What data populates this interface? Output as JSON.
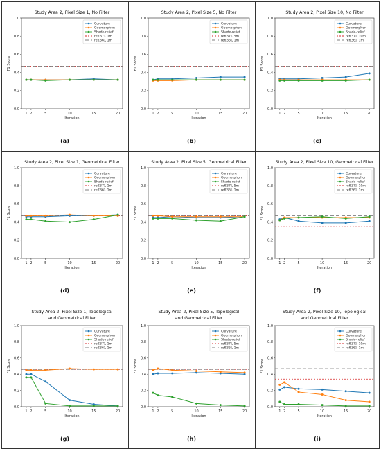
{
  "colors": {
    "curvature": "#1f77b4",
    "geomorphon": "#ff7f0e",
    "shade_relief": "#2ca02c",
    "ref37": "#d62728",
    "ref36": "#7f7f7f",
    "grid_border": "#333333"
  },
  "chart_data": [
    {
      "type": "line",
      "panel_label": "(a)",
      "title": [
        "Study Area 2, Pixel Size 1, No Filter"
      ],
      "xlabel": "Iteration",
      "ylabel": "F1 Score",
      "x": [
        1,
        2,
        5,
        10,
        15,
        20
      ],
      "xticks": [
        "1",
        "2",
        "5",
        "10",
        "15",
        "20"
      ],
      "ylim": [
        0,
        1.0
      ],
      "yticks": [
        "0.0",
        "0.2",
        "0.4",
        "0.6",
        "0.8",
        "1.0"
      ],
      "series": [
        {
          "name": "Curvature",
          "key": "curvature",
          "values": [
            0.32,
            0.32,
            0.32,
            0.32,
            0.33,
            0.32
          ]
        },
        {
          "name": "Geomorphon",
          "key": "geomorphon",
          "values": [
            0.32,
            0.32,
            0.32,
            0.32,
            0.32,
            0.32
          ]
        },
        {
          "name": "Shade-relief",
          "key": "shade_relief",
          "values": [
            0.32,
            0.32,
            0.31,
            0.32,
            0.32,
            0.32
          ]
        }
      ],
      "references": [
        {
          "name": "ref[37], 1m",
          "key": "ref37",
          "value": 0.47,
          "dash": "2,2"
        },
        {
          "name": "ref[36], 1m",
          "key": "ref36",
          "value": 0.47,
          "dash": "5,3"
        }
      ],
      "legend": "top-right"
    },
    {
      "type": "line",
      "panel_label": "(b)",
      "title": [
        "Study Area 2, Pixel Size 5, No Filter"
      ],
      "xlabel": "Iteration",
      "ylabel": "F1 Score",
      "x": [
        1,
        2,
        5,
        10,
        15,
        20
      ],
      "xticks": [
        "1",
        "2",
        "5",
        "10",
        "15",
        "20"
      ],
      "ylim": [
        0,
        1.0
      ],
      "yticks": [
        "0.0",
        "0.2",
        "0.4",
        "0.6",
        "0.8",
        "1.0"
      ],
      "series": [
        {
          "name": "Curvature",
          "key": "curvature",
          "values": [
            0.32,
            0.33,
            0.33,
            0.34,
            0.35,
            0.35
          ]
        },
        {
          "name": "Geomorphon",
          "key": "geomorphon",
          "values": [
            0.31,
            0.31,
            0.31,
            0.32,
            0.32,
            0.32
          ]
        },
        {
          "name": "Shade-relief",
          "key": "shade_relief",
          "values": [
            0.32,
            0.32,
            0.32,
            0.32,
            0.32,
            0.32
          ]
        }
      ],
      "references": [
        {
          "name": "ref[37], 5m",
          "key": "ref37",
          "value": 0.47,
          "dash": "2,2"
        },
        {
          "name": "ref[36], 1m",
          "key": "ref36",
          "value": 0.47,
          "dash": "5,3"
        }
      ],
      "legend": "top-right"
    },
    {
      "type": "line",
      "panel_label": "(c)",
      "title": [
        "Study Area 2, Pixel Size 10, No Filter"
      ],
      "xlabel": "Iteration",
      "ylabel": "F1 Score",
      "x": [
        1,
        2,
        5,
        10,
        15,
        20
      ],
      "xticks": [
        "1",
        "2",
        "5",
        "10",
        "15",
        "20"
      ],
      "ylim": [
        0,
        1.0
      ],
      "yticks": [
        "0.0",
        "0.2",
        "0.4",
        "0.6",
        "0.8",
        "1.0"
      ],
      "series": [
        {
          "name": "Curvature",
          "key": "curvature",
          "values": [
            0.33,
            0.33,
            0.33,
            0.34,
            0.35,
            0.39
          ]
        },
        {
          "name": "Geomorphon",
          "key": "geomorphon",
          "values": [
            0.32,
            0.32,
            0.32,
            0.32,
            0.32,
            0.32
          ]
        },
        {
          "name": "Shade-relief",
          "key": "shade_relief",
          "values": [
            0.31,
            0.31,
            0.31,
            0.31,
            0.31,
            0.32
          ]
        }
      ],
      "references": [
        {
          "name": "ref[37], 10m",
          "key": "ref37",
          "value": 0.47,
          "dash": "2,2"
        },
        {
          "name": "ref[36], 1m",
          "key": "ref36",
          "value": 0.47,
          "dash": "5,3"
        }
      ],
      "legend": "top-right"
    },
    {
      "type": "line",
      "panel_label": "(d)",
      "title": [
        "Study Area 2, Pixel Size 1, Geometrical Filter"
      ],
      "xlabel": "Iteration",
      "ylabel": "F1 Score",
      "x": [
        1,
        2,
        5,
        10,
        15,
        20
      ],
      "xticks": [
        "1",
        "2",
        "5",
        "10",
        "15",
        "20"
      ],
      "ylim": [
        0,
        1.0
      ],
      "yticks": [
        "0.0",
        "0.2",
        "0.4",
        "0.6",
        "0.8",
        "1.0"
      ],
      "series": [
        {
          "name": "Curvature",
          "key": "curvature",
          "values": [
            0.46,
            0.46,
            0.46,
            0.47,
            0.47,
            0.48
          ]
        },
        {
          "name": "Geomorphon",
          "key": "geomorphon",
          "values": [
            0.47,
            0.47,
            0.47,
            0.48,
            0.47,
            0.47
          ]
        },
        {
          "name": "Shade-relief",
          "key": "shade_relief",
          "values": [
            0.43,
            0.43,
            0.41,
            0.4,
            0.43,
            0.48
          ]
        }
      ],
      "references": [
        {
          "name": "ref[37], 1m",
          "key": "ref37",
          "value": 0.47,
          "dash": "2,2"
        },
        {
          "name": "ref[36], 1m",
          "key": "ref36",
          "value": 0.47,
          "dash": "5,3"
        }
      ],
      "legend": "top-right"
    },
    {
      "type": "line",
      "panel_label": "(e)",
      "title": [
        "Study Area 2, Pixel Size 5, Geometrical Filter"
      ],
      "xlabel": "Iteration",
      "ylabel": "F1 Score",
      "x": [
        1,
        2,
        5,
        10,
        15,
        20
      ],
      "xticks": [
        "1",
        "2",
        "5",
        "10",
        "15",
        "20"
      ],
      "ylim": [
        0,
        1.0
      ],
      "yticks": [
        "0.0",
        "0.2",
        "0.4",
        "0.6",
        "0.8",
        "1.0"
      ],
      "series": [
        {
          "name": "Curvature",
          "key": "curvature",
          "values": [
            0.45,
            0.45,
            0.46,
            0.45,
            0.45,
            0.46
          ]
        },
        {
          "name": "Geomorphon",
          "key": "geomorphon",
          "values": [
            0.47,
            0.47,
            0.46,
            0.46,
            0.46,
            0.46
          ]
        },
        {
          "name": "Shade-relief",
          "key": "shade_relief",
          "values": [
            0.44,
            0.44,
            0.44,
            0.42,
            0.41,
            0.46
          ]
        }
      ],
      "references": [
        {
          "name": "ref[37], 5m",
          "key": "ref37",
          "value": 0.47,
          "dash": "2,2"
        },
        {
          "name": "ref[36], 1m",
          "key": "ref36",
          "value": 0.47,
          "dash": "5,3"
        }
      ],
      "legend": "top-right"
    },
    {
      "type": "line",
      "panel_label": "(f)",
      "title": [
        "Study Area 2, Pixel Size 10, Geometrical Filter"
      ],
      "xlabel": "Iteration",
      "ylabel": "F1 Score",
      "x": [
        1,
        2,
        5,
        10,
        15,
        20
      ],
      "xticks": [
        "1",
        "2",
        "5",
        "10",
        "15",
        "20"
      ],
      "ylim": [
        0,
        1.0
      ],
      "yticks": [
        "0.0",
        "0.2",
        "0.4",
        "0.6",
        "0.8",
        "1.0"
      ],
      "series": [
        {
          "name": "Curvature",
          "key": "curvature",
          "values": [
            0.43,
            0.45,
            0.41,
            0.39,
            0.39,
            0.41
          ]
        },
        {
          "name": "Geomorphon",
          "key": "geomorphon",
          "values": [
            0.42,
            0.45,
            0.45,
            0.45,
            0.45,
            0.45
          ]
        },
        {
          "name": "Shade-relief",
          "key": "shade_relief",
          "values": [
            0.42,
            0.44,
            0.45,
            0.46,
            0.44,
            0.46
          ]
        }
      ],
      "references": [
        {
          "name": "ref[37], 10m",
          "key": "ref37",
          "value": 0.35,
          "dash": "2,2"
        },
        {
          "name": "ref[36], 1m",
          "key": "ref36",
          "value": 0.47,
          "dash": "5,3"
        }
      ],
      "legend": "top-right"
    },
    {
      "type": "line",
      "panel_label": "(g)",
      "title": [
        "Study Area 2, Pixel Size 1, Topological",
        "and Geometrical Filter"
      ],
      "xlabel": "Iteration",
      "ylabel": "F1 Score",
      "x": [
        1,
        2,
        5,
        10,
        15,
        20
      ],
      "xticks": [
        "1",
        "2",
        "5",
        "10",
        "15",
        "20"
      ],
      "ylim": [
        0,
        1.0
      ],
      "yticks": [
        "0.0",
        "0.2",
        "0.4",
        "0.6",
        "0.8",
        "1.0"
      ],
      "series": [
        {
          "name": "Curvature",
          "key": "curvature",
          "values": [
            0.4,
            0.4,
            0.31,
            0.08,
            0.03,
            0.01
          ]
        },
        {
          "name": "Geomorphon",
          "key": "geomorphon",
          "values": [
            0.45,
            0.45,
            0.45,
            0.47,
            0.46,
            0.46
          ]
        },
        {
          "name": "Shade-relief",
          "key": "shade_relief",
          "values": [
            0.36,
            0.36,
            0.04,
            0.01,
            0.01,
            0.01
          ]
        }
      ],
      "references": [
        {
          "name": "ref[37], 1m",
          "key": "ref37",
          "value": 0.46,
          "dash": "2,2"
        },
        {
          "name": "ref[36], 1m",
          "key": "ref36",
          "value": 0.46,
          "dash": "5,3"
        }
      ],
      "legend": "top-right"
    },
    {
      "type": "line",
      "panel_label": "(h)",
      "title": [
        "Study Area 2, Pixel Size 5, Topological",
        "and Geometrical Filter"
      ],
      "xlabel": "Iteration",
      "ylabel": "F1 Score",
      "x": [
        1,
        2,
        5,
        10,
        15,
        20
      ],
      "xticks": [
        "1",
        "2",
        "5",
        "10",
        "15",
        "20"
      ],
      "ylim": [
        0,
        1.0
      ],
      "yticks": [
        "0.0",
        "0.2",
        "0.4",
        "0.6",
        "0.8",
        "1.0"
      ],
      "series": [
        {
          "name": "Curvature",
          "key": "curvature",
          "values": [
            0.4,
            0.41,
            0.41,
            0.42,
            0.41,
            0.4
          ]
        },
        {
          "name": "Geomorphon",
          "key": "geomorphon",
          "values": [
            0.45,
            0.47,
            0.45,
            0.44,
            0.43,
            0.42
          ]
        },
        {
          "name": "Shade-relief",
          "key": "shade_relief",
          "values": [
            0.17,
            0.14,
            0.12,
            0.04,
            0.02,
            0.01
          ]
        }
      ],
      "references": [
        {
          "name": "ref[37], 5m",
          "key": "ref37",
          "value": 0.46,
          "dash": "2,2"
        },
        {
          "name": "ref[36], 1m",
          "key": "ref36",
          "value": 0.46,
          "dash": "5,3"
        }
      ],
      "legend": "top-right"
    },
    {
      "type": "line",
      "panel_label": "(i)",
      "title": [
        "Study Area 2, Pixel Size 10, Topological",
        "and Geometrical Filter"
      ],
      "xlabel": "Iteration",
      "ylabel": "F1 Score",
      "x": [
        1,
        2,
        5,
        10,
        15,
        20
      ],
      "xticks": [
        "1",
        "2",
        "5",
        "10",
        "15",
        "20"
      ],
      "ylim": [
        0,
        1.0
      ],
      "yticks": [
        "0.0",
        "0.2",
        "0.4",
        "0.6",
        "0.8",
        "1.0"
      ],
      "series": [
        {
          "name": "Curvature",
          "key": "curvature",
          "values": [
            0.21,
            0.24,
            0.22,
            0.21,
            0.19,
            0.17
          ]
        },
        {
          "name": "Geomorphon",
          "key": "geomorphon",
          "values": [
            0.27,
            0.3,
            0.18,
            0.15,
            0.08,
            0.06
          ]
        },
        {
          "name": "Shade-relief",
          "key": "shade_relief",
          "values": [
            0.06,
            0.03,
            0.03,
            0.02,
            0.01,
            0.01
          ]
        }
      ],
      "references": [
        {
          "name": "ref[37], 10m",
          "key": "ref37",
          "value": 0.34,
          "dash": "2,2"
        },
        {
          "name": "ref[36], 1m",
          "key": "ref36",
          "value": 0.47,
          "dash": "5,3"
        }
      ],
      "legend": "top-right"
    }
  ]
}
